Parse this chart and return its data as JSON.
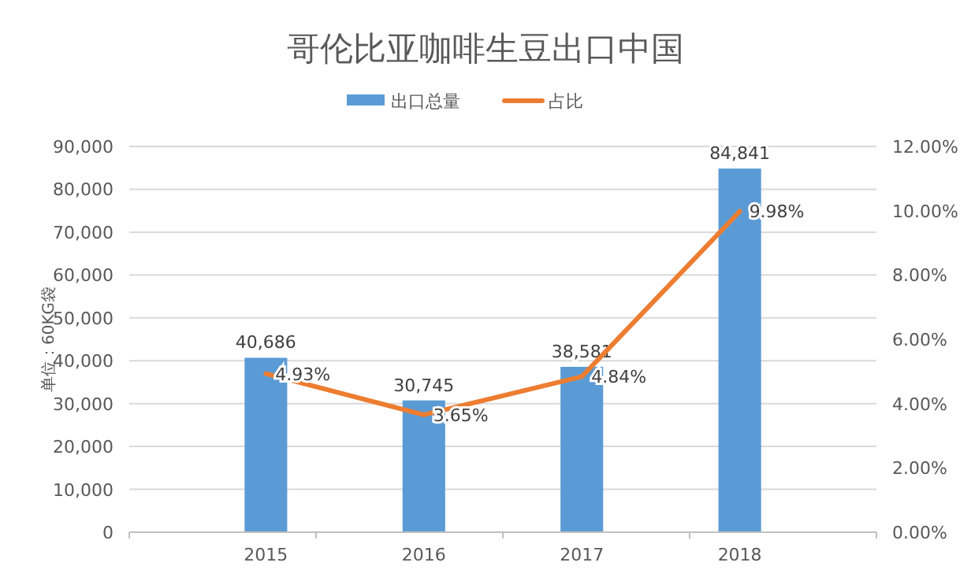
{
  "chart_data": {
    "type": "bar",
    "title": "哥伦比亚咖啡生豆出口中国",
    "ylabel": "单位：60KG袋",
    "categories": [
      "2015",
      "2016",
      "2017",
      "2018"
    ],
    "series": [
      {
        "name": "出口总量",
        "color": "#5b9bd5",
        "values": [
          40686,
          30745,
          38581,
          84841
        ],
        "value_labels": [
          "40,686",
          "30,745",
          "38,581",
          "84,841"
        ]
      },
      {
        "name": "占比",
        "type": "line",
        "axis": "y2",
        "color": "#ed7d31",
        "values": [
          4.93,
          3.65,
          4.84,
          9.98
        ],
        "value_labels": [
          "4.93%",
          "3.65%",
          "4.84%",
          "9.98%"
        ]
      }
    ],
    "ylim": [
      0,
      90000
    ],
    "yticks": [
      {
        "value": 0,
        "label": "0"
      },
      {
        "value": 10000,
        "label": "10,000"
      },
      {
        "value": 20000,
        "label": "20,000"
      },
      {
        "value": 30000,
        "label": "30,000"
      },
      {
        "value": 40000,
        "label": "40,000"
      },
      {
        "value": 50000,
        "label": "50,000"
      },
      {
        "value": 60000,
        "label": "60,000"
      },
      {
        "value": 70000,
        "label": "70,000"
      },
      {
        "value": 80000,
        "label": "80,000"
      },
      {
        "value": 90000,
        "label": "90,000"
      }
    ],
    "y2lim": [
      0,
      12
    ],
    "y2ticks": [
      {
        "value": 0,
        "label": "0.00%"
      },
      {
        "value": 2,
        "label": "2.00%"
      },
      {
        "value": 4,
        "label": "4.00%"
      },
      {
        "value": 6,
        "label": "6.00%"
      },
      {
        "value": 8,
        "label": "8.00%"
      },
      {
        "value": 10,
        "label": "10.00%"
      },
      {
        "value": 12,
        "label": "12.00%"
      }
    ],
    "grid": "y",
    "legend": "top",
    "marker": "none",
    "line_style": "solid"
  }
}
